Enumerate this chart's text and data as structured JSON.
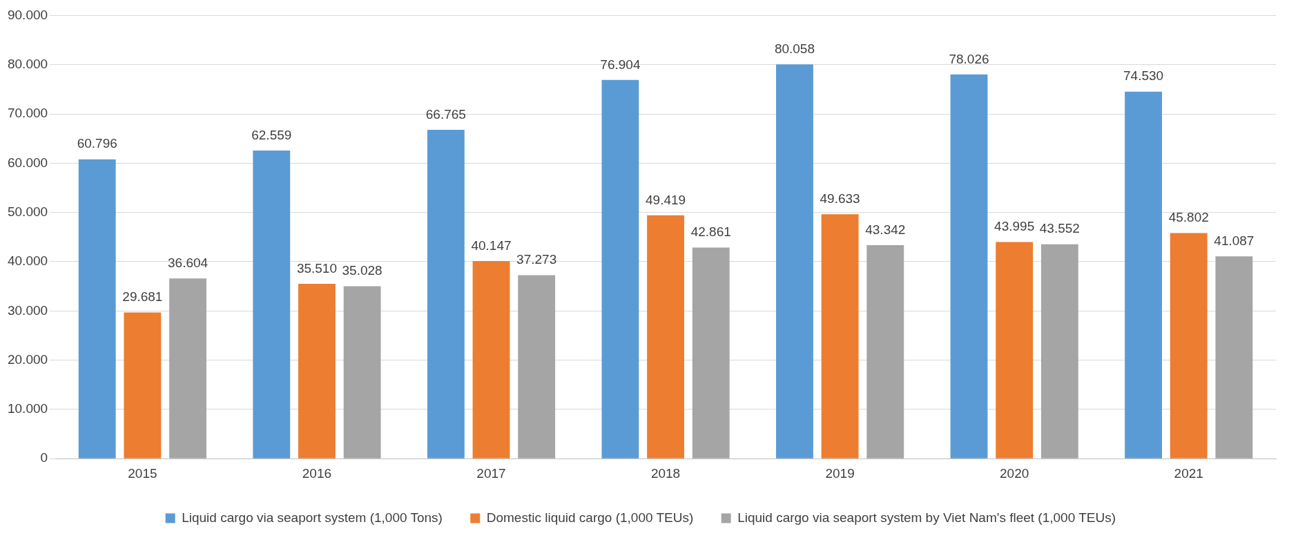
{
  "chart_data": {
    "type": "bar",
    "categories": [
      "2015",
      "2016",
      "2017",
      "2018",
      "2019",
      "2020",
      "2021"
    ],
    "series": [
      {
        "name": "Liquid cargo via seaport system (1,000 Tons)",
        "color": "#5b9bd5",
        "values": [
          60796,
          62559,
          66765,
          76904,
          80058,
          78026,
          74530
        ],
        "value_labels": [
          "60.796",
          "62.559",
          "66.765",
          "76.904",
          "80.058",
          "78.026",
          "74.530"
        ]
      },
      {
        "name": "Domestic liquid cargo (1,000 TEUs)",
        "color": "#ed7d31",
        "values": [
          29681,
          35510,
          40147,
          49419,
          49633,
          43995,
          45802
        ],
        "value_labels": [
          "29.681",
          "35.510",
          "40.147",
          "49.419",
          "49.633",
          "43.995",
          "45.802"
        ]
      },
      {
        "name": "Liquid cargo via seaport system by Viet Nam's fleet (1,000 TEUs)",
        "color": "#a5a5a5",
        "values": [
          36604,
          35028,
          37273,
          42861,
          43342,
          43552,
          41087
        ],
        "value_labels": [
          "36.604",
          "35.028",
          "37.273",
          "42.861",
          "43.342",
          "43.552",
          "41.087"
        ]
      }
    ],
    "ylim": [
      0,
      90000
    ],
    "yticks": [
      {
        "value": 0,
        "label": "0"
      },
      {
        "value": 10000,
        "label": "10.000"
      },
      {
        "value": 20000,
        "label": "20.000"
      },
      {
        "value": 30000,
        "label": "30.000"
      },
      {
        "value": 40000,
        "label": "40.000"
      },
      {
        "value": 50000,
        "label": "50.000"
      },
      {
        "value": 60000,
        "label": "60.000"
      },
      {
        "value": 70000,
        "label": "70.000"
      },
      {
        "value": 80000,
        "label": "80.000"
      },
      {
        "value": 90000,
        "label": "90.000"
      }
    ],
    "grid": "y",
    "legend": "bottom"
  }
}
